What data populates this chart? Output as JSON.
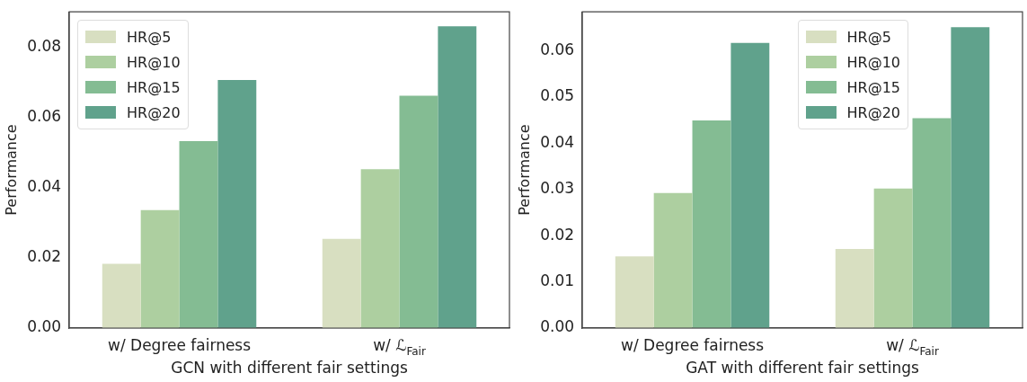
{
  "chart_data": [
    {
      "type": "bar",
      "xlabel": "GCN with different fair settings",
      "ylabel": "Performance",
      "categories": [
        "w/ Degree fairness",
        "w/ ℒ$_{Fair}$"
      ],
      "series": [
        {
          "name": "HR@5",
          "color": "#d8dfc1",
          "values": [
            0.0183,
            0.0254
          ]
        },
        {
          "name": "HR@10",
          "color": "#adcfa0",
          "values": [
            0.0336,
            0.0452
          ]
        },
        {
          "name": "HR@15",
          "color": "#84bc93",
          "values": [
            0.0532,
            0.0661
          ]
        },
        {
          "name": "HR@20",
          "color": "#60a28c",
          "values": [
            0.0706,
            0.0859
          ]
        }
      ],
      "ylim": [
        0,
        0.09
      ],
      "yticks": [
        {
          "value": 0,
          "label": "0.00"
        },
        {
          "value": 0.02,
          "label": "0.02"
        },
        {
          "value": 0.04,
          "label": "0.04"
        },
        {
          "value": 0.06,
          "label": "0.06"
        },
        {
          "value": 0.08,
          "label": "0.08"
        }
      ],
      "legend": "top left",
      "grid": false
    },
    {
      "type": "bar",
      "xlabel": "GAT with different fair settings",
      "ylabel": "Performance",
      "categories": [
        "w/ Degree fairness",
        "w/ ℒ$_{Fair}$"
      ],
      "series": [
        {
          "name": "HR@5",
          "color": "#d8dfc1",
          "values": [
            0.0155,
            0.0171
          ]
        },
        {
          "name": "HR@10",
          "color": "#adcfa0",
          "values": [
            0.0292,
            0.0302
          ]
        },
        {
          "name": "HR@15",
          "color": "#84bc93",
          "values": [
            0.0449,
            0.0454
          ]
        },
        {
          "name": "HR@20",
          "color": "#60a28c",
          "values": [
            0.0617,
            0.0651
          ]
        }
      ],
      "ylim": [
        0,
        0.0684
      ],
      "yticks": [
        {
          "value": 0,
          "label": "0.00"
        },
        {
          "value": 0.01,
          "label": "0.01"
        },
        {
          "value": 0.02,
          "label": "0.02"
        },
        {
          "value": 0.03,
          "label": "0.03"
        },
        {
          "value": 0.04,
          "label": "0.04"
        },
        {
          "value": 0.05,
          "label": "0.05"
        },
        {
          "value": 0.06,
          "label": "0.06"
        }
      ],
      "legend": "top right",
      "grid": false
    }
  ]
}
